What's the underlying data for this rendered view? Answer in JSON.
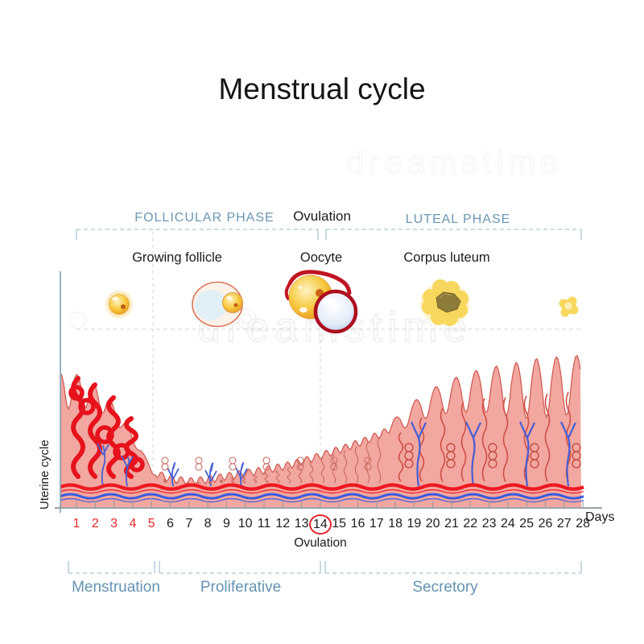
{
  "title": "Menstrual cycle",
  "watermark": "dreamstime",
  "top_phases": {
    "follicular": "FOLLICULAR PHASE",
    "ovulation": "Ovulation",
    "luteal": "LUTEAL PHASE"
  },
  "stage_labels": {
    "growing_follicle": "Growing follicle",
    "oocyte": "Oocyte",
    "corpus_luteum": "Corpus luteum"
  },
  "axis": {
    "y_label": "Uterine cycle",
    "x_label": "Days",
    "days": [
      1,
      2,
      3,
      4,
      5,
      6,
      7,
      8,
      9,
      10,
      11,
      12,
      13,
      14,
      15,
      16,
      17,
      18,
      19,
      20,
      21,
      22,
      23,
      24,
      25,
      26,
      27,
      28
    ],
    "red_days": [
      1,
      2,
      3,
      4,
      5
    ],
    "circled_day": 14,
    "ovulation_label": "Ovulation"
  },
  "bottom_phases": [
    {
      "label": "Menstruation",
      "day_start": 1,
      "day_end": 5
    },
    {
      "label": "Proliferative",
      "day_start": 5,
      "day_end": 14
    },
    {
      "label": "Secretory",
      "day_start": 14,
      "day_end": 28
    }
  ],
  "colors": {
    "phase_label": "#6593b3",
    "red_day": "#e8262a",
    "bracket": "#a9c6d2",
    "tissue": "#f2a7a0",
    "tissue_edge": "#cf5f55",
    "artery": "#ee1820",
    "vein": "#3b5bdc"
  }
}
